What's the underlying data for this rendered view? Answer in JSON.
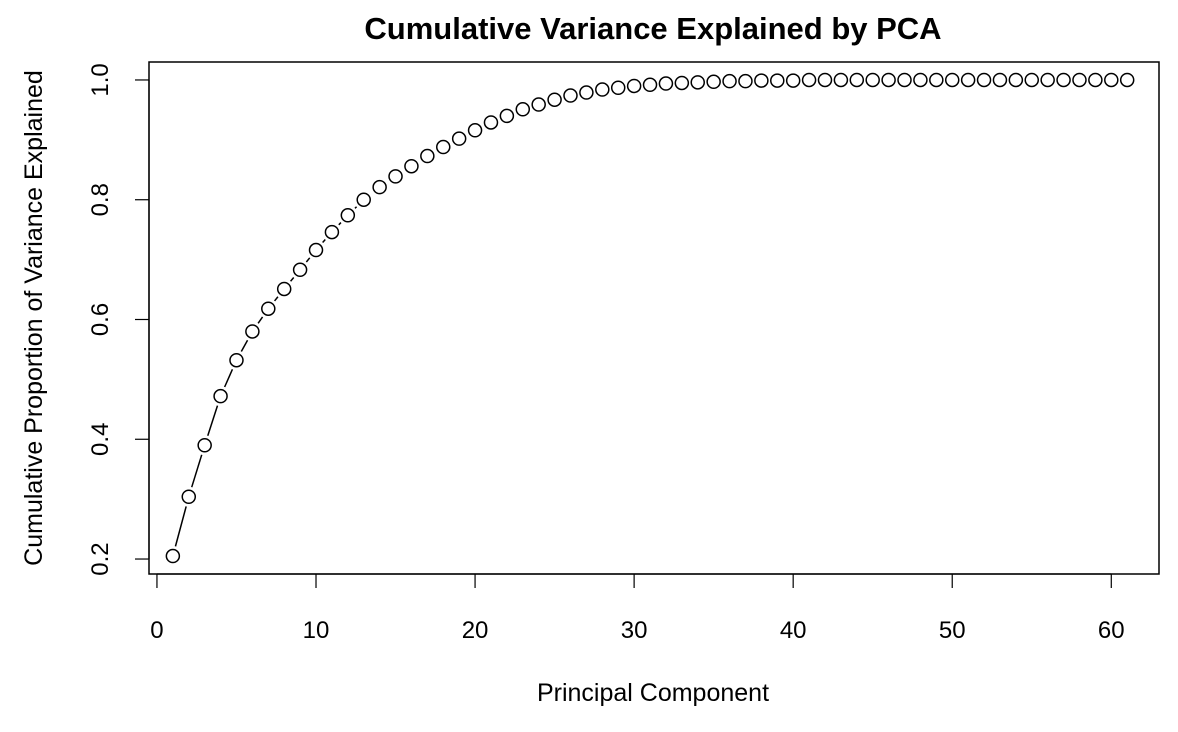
{
  "chart_data": {
    "type": "scatter",
    "title": "Cumulative Variance Explained by PCA",
    "xlabel": "Principal Component",
    "ylabel": "Cumulative Proportion of Variance Explained",
    "xlim": [
      -0.5,
      63
    ],
    "ylim": [
      0.175,
      1.03
    ],
    "x_ticks": [
      0,
      10,
      20,
      30,
      40,
      50,
      60
    ],
    "y_ticks": [
      0.2,
      0.4,
      0.6,
      0.8,
      1.0
    ],
    "x_tick_labels": [
      "0",
      "10",
      "20",
      "30",
      "40",
      "50",
      "60"
    ],
    "y_tick_labels": [
      "0.2",
      "0.4",
      "0.6",
      "0.8",
      "1.0"
    ],
    "grid": false,
    "series": [
      {
        "marker": "open-circle",
        "line": "connected",
        "color": "#000000",
        "x": [
          1,
          2,
          3,
          4,
          5,
          6,
          7,
          8,
          9,
          10,
          11,
          12,
          13,
          14,
          15,
          16,
          17,
          18,
          19,
          20,
          21,
          22,
          23,
          24,
          25,
          26,
          27,
          28,
          29,
          30,
          31,
          32,
          33,
          34,
          35,
          36,
          37,
          38,
          39,
          40,
          41,
          42,
          43,
          44,
          45,
          46,
          47,
          48,
          49,
          50,
          51,
          52,
          53,
          54,
          55,
          56,
          57,
          58,
          59,
          60,
          61
        ],
        "y": [
          0.205,
          0.304,
          0.39,
          0.472,
          0.532,
          0.58,
          0.618,
          0.651,
          0.683,
          0.716,
          0.746,
          0.774,
          0.8,
          0.821,
          0.839,
          0.856,
          0.873,
          0.888,
          0.902,
          0.916,
          0.929,
          0.94,
          0.951,
          0.959,
          0.967,
          0.974,
          0.979,
          0.984,
          0.987,
          0.99,
          0.992,
          0.994,
          0.995,
          0.996,
          0.997,
          0.998,
          0.998,
          0.999,
          0.999,
          0.999,
          1.0,
          1.0,
          1.0,
          1.0,
          1.0,
          1.0,
          1.0,
          1.0,
          1.0,
          1.0,
          1.0,
          1.0,
          1.0,
          1.0,
          1.0,
          1.0,
          1.0,
          1.0,
          1.0,
          1.0,
          1.0
        ]
      }
    ]
  }
}
